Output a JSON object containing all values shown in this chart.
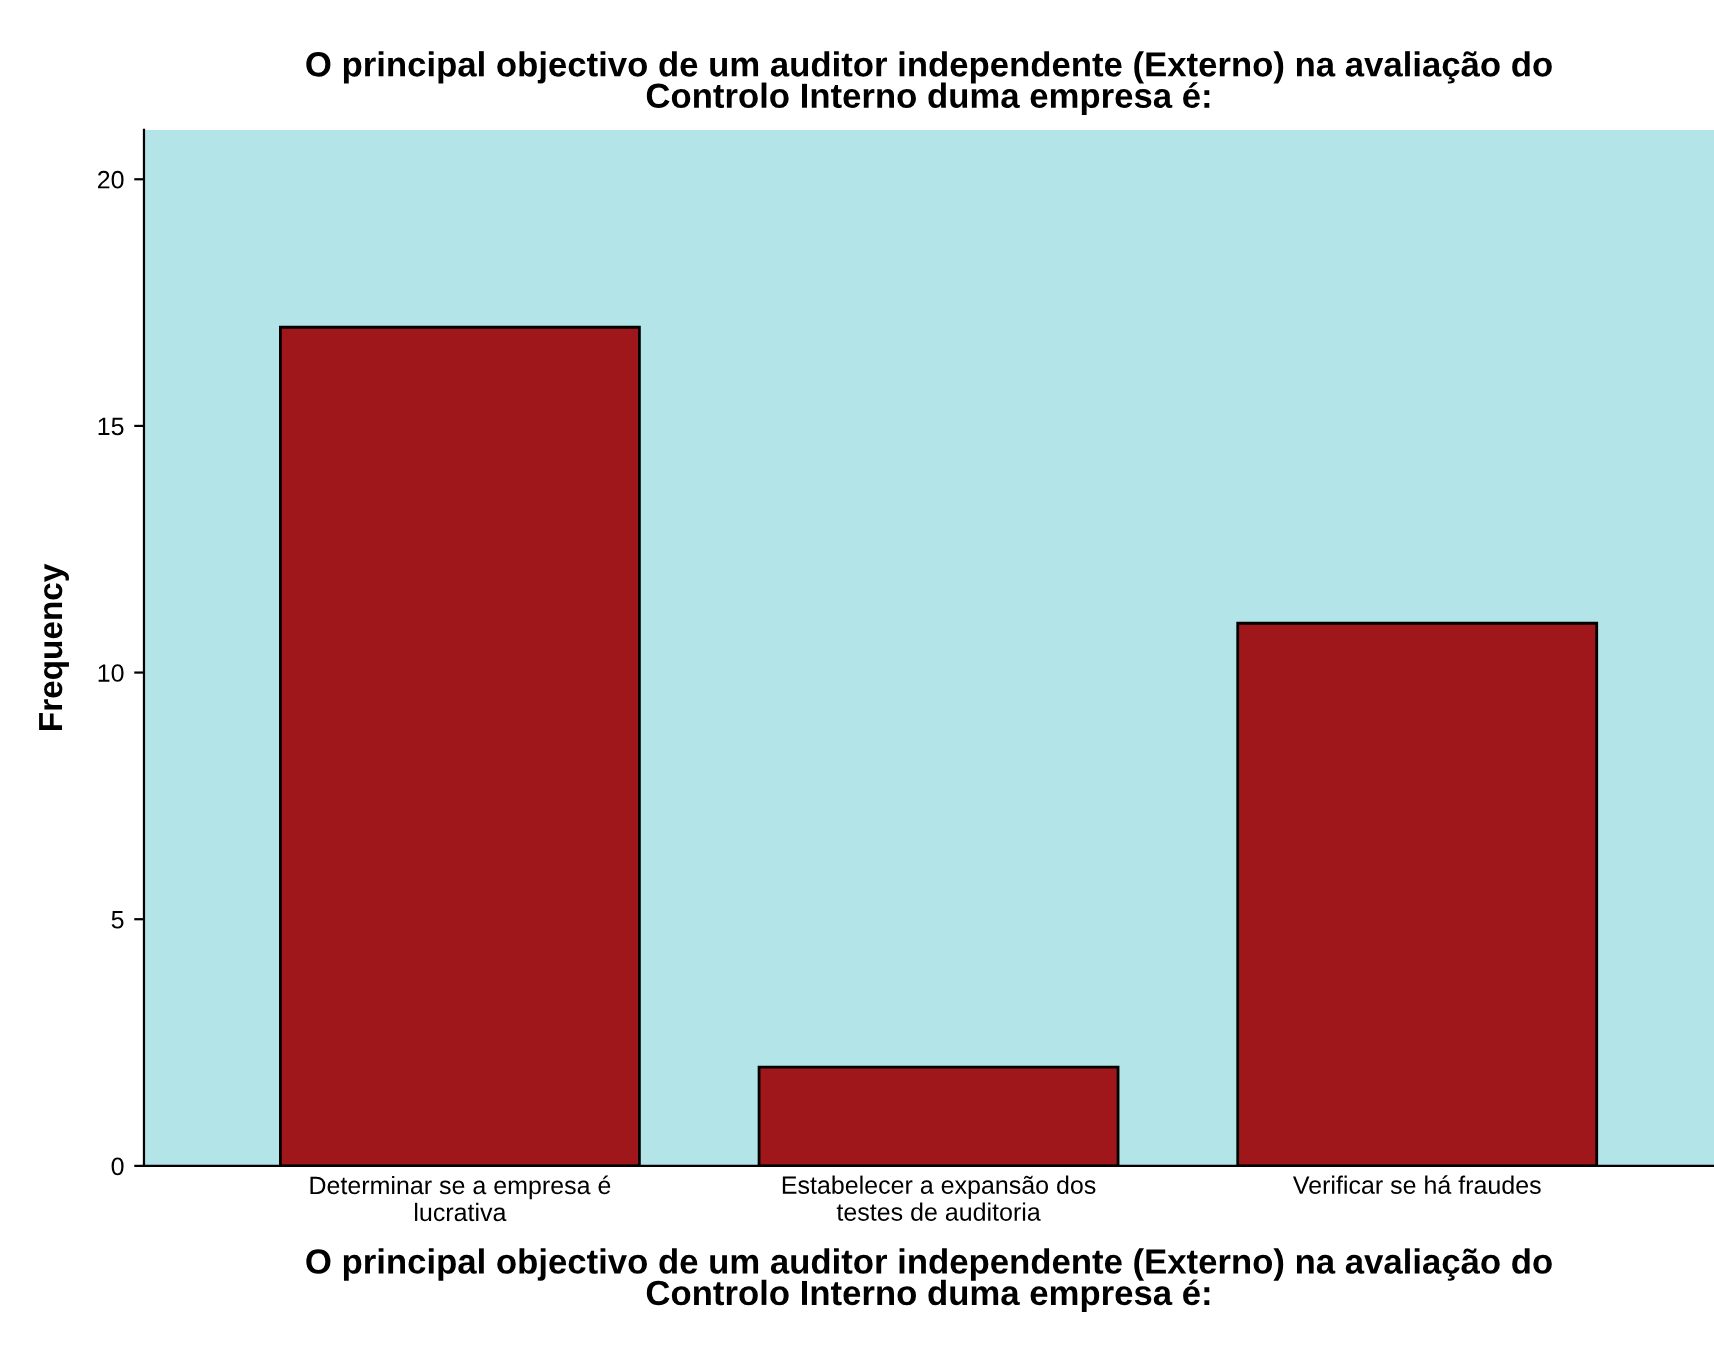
{
  "chart_data": {
    "type": "bar",
    "title": "O principal objectivo de um auditor independente (Externo) na avaliação do\nControlo Interno duma empresa é:",
    "xlabel": "O principal objectivo de um auditor independente (Externo) na avaliação do\nControlo Interno duma empresa é:",
    "ylabel": "Frequency",
    "categories": [
      "Determinar se a empresa é\nlucrativa",
      "Estabelecer a expansão dos\ntestes de auditoria",
      "Verificar se há fraudes"
    ],
    "values": [
      17,
      2,
      11
    ],
    "color": "#a0171b",
    "ylim": [
      0,
      21
    ],
    "yticks": [
      0,
      5,
      10,
      15,
      20
    ],
    "grid": false,
    "legend": false
  }
}
